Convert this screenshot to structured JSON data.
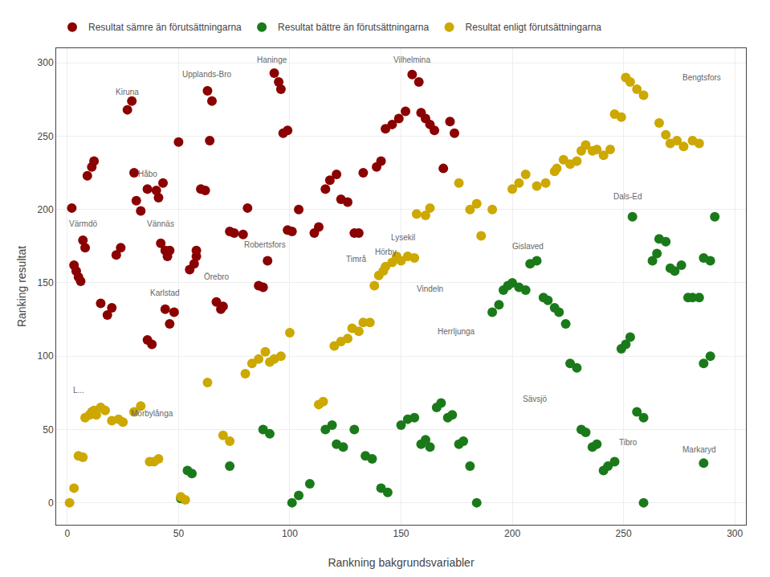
{
  "chart_data": {
    "type": "scatter",
    "xlabel": "Rankning bakgrundsvariabler",
    "ylabel": "Ranking resultat",
    "xlim": [
      -5,
      305
    ],
    "ylim": [
      -15,
      310
    ],
    "xticks": [
      0,
      50,
      100,
      150,
      200,
      250,
      300
    ],
    "yticks": [
      0,
      50,
      100,
      150,
      200,
      250,
      300
    ],
    "grid": true,
    "legend": "top left",
    "marker": "circle",
    "series": [
      {
        "name": "Resultat sämre än förutsättningarna",
        "color": "#8B0000",
        "x": [
          2,
          3,
          4,
          5,
          6,
          7,
          8,
          9,
          11,
          12,
          15,
          18,
          20,
          22,
          24,
          27,
          29,
          30,
          31,
          33,
          36,
          36,
          38,
          40,
          41,
          43,
          42,
          44,
          45,
          46,
          44,
          46,
          48,
          50,
          55,
          57,
          58,
          58,
          60,
          62,
          63,
          65,
          64,
          67,
          69,
          70,
          73,
          75,
          79,
          81,
          86,
          88,
          90,
          93,
          95,
          96,
          97,
          99,
          99,
          101,
          104,
          111,
          113,
          116,
          118,
          121,
          123,
          126,
          129,
          131,
          133,
          139,
          141,
          143,
          146,
          149,
          152,
          155,
          158,
          159,
          161,
          163,
          165,
          169,
          172,
          174
        ],
        "values": [
          201,
          162,
          158,
          154,
          151,
          179,
          174,
          223,
          229,
          233,
          136,
          128,
          133,
          169,
          174,
          268,
          274,
          225,
          206,
          199,
          214,
          111,
          108,
          213,
          208,
          218,
          177,
          172,
          168,
          172,
          132,
          122,
          130,
          246,
          159,
          163,
          168,
          172,
          214,
          213,
          281,
          274,
          247,
          137,
          132,
          134,
          185,
          184,
          183,
          201,
          148,
          147,
          165,
          293,
          287,
          282,
          252,
          254,
          186,
          185,
          200,
          184,
          188,
          214,
          220,
          224,
          207,
          205,
          184,
          184,
          225,
          229,
          233,
          255,
          258,
          262,
          267,
          292,
          287,
          266,
          262,
          258,
          254,
          228,
          260,
          252
        ]
      },
      {
        "name": "Resultat bättre än förutsättningarna",
        "color": "#1a7a1a",
        "x": [
          51,
          54,
          56,
          73,
          88,
          91,
          101,
          104,
          109,
          116,
          119,
          121,
          124,
          129,
          134,
          137,
          141,
          144,
          150,
          153,
          156,
          159,
          161,
          163,
          166,
          168,
          171,
          173,
          176,
          178,
          181,
          184,
          191,
          194,
          196,
          198,
          200,
          203,
          206,
          208,
          211,
          214,
          216,
          219,
          221,
          224,
          226,
          229,
          231,
          233,
          236,
          238,
          241,
          243,
          246,
          249,
          251,
          253,
          254,
          256,
          259,
          259,
          263,
          265,
          266,
          269,
          271,
          273,
          276,
          279,
          281,
          284,
          286,
          289,
          286,
          289,
          286,
          291
        ],
        "values": [
          3,
          22,
          20,
          25,
          50,
          47,
          0,
          5,
          13,
          50,
          53,
          40,
          38,
          50,
          32,
          30,
          10,
          7,
          53,
          57,
          58,
          40,
          43,
          38,
          65,
          68,
          58,
          60,
          40,
          42,
          25,
          0,
          130,
          135,
          145,
          148,
          150,
          147,
          145,
          163,
          165,
          140,
          138,
          133,
          130,
          122,
          95,
          92,
          50,
          48,
          38,
          40,
          22,
          25,
          28,
          105,
          108,
          113,
          195,
          62,
          58,
          0,
          165,
          170,
          180,
          178,
          160,
          158,
          162,
          140,
          140,
          140,
          167,
          165,
          95,
          100,
          27,
          195
        ]
      },
      {
        "name": "Resultat enligt förutsättningarna",
        "color": "#CCA800",
        "x": [
          1,
          3,
          5,
          7,
          8,
          10,
          11,
          12,
          13,
          15,
          17,
          20,
          23,
          25,
          30,
          33,
          37,
          39,
          41,
          51,
          53,
          63,
          70,
          73,
          80,
          83,
          86,
          89,
          91,
          93,
          96,
          100,
          113,
          115,
          120,
          123,
          126,
          128,
          131,
          133,
          136,
          138,
          140,
          142,
          143,
          146,
          148,
          150,
          153,
          156,
          157,
          161,
          163,
          176,
          181,
          184,
          186,
          191,
          200,
          203,
          206,
          211,
          215,
          219,
          220,
          223,
          226,
          229,
          231,
          233,
          236,
          238,
          241,
          244,
          246,
          249,
          251,
          253,
          256,
          259,
          266,
          269,
          271,
          274,
          277,
          281,
          284
        ],
        "values": [
          0,
          10,
          32,
          31,
          58,
          60,
          62,
          63,
          60,
          65,
          63,
          56,
          57,
          55,
          62,
          66,
          28,
          28,
          30,
          4,
          2,
          82,
          46,
          42,
          88,
          95,
          98,
          103,
          96,
          98,
          100,
          116,
          67,
          69,
          107,
          110,
          112,
          119,
          117,
          123,
          123,
          148,
          155,
          158,
          161,
          164,
          168,
          165,
          168,
          167,
          197,
          196,
          201,
          218,
          200,
          204,
          182,
          200,
          214,
          218,
          224,
          216,
          218,
          226,
          228,
          234,
          231,
          233,
          240,
          244,
          240,
          241,
          237,
          241,
          265,
          263,
          290,
          287,
          282,
          278,
          259,
          251,
          245,
          247,
          243,
          247,
          245
        ]
      }
    ],
    "annotations": [
      {
        "text": "Kiruna",
        "x": 27,
        "y": 271
      },
      {
        "text": "Upplands-Bro",
        "x": 63,
        "y": 283
      },
      {
        "text": "Haninge",
        "x": 92,
        "y": 293
      },
      {
        "text": "Vilhelmina",
        "x": 155,
        "y": 293
      },
      {
        "text": "Håbo",
        "x": 36,
        "y": 215
      },
      {
        "text": "Vännäs",
        "x": 42,
        "y": 181
      },
      {
        "text": "Värmdö",
        "x": 7,
        "y": 181
      },
      {
        "text": "Karlstad",
        "x": 44,
        "y": 134
      },
      {
        "text": "Örebro",
        "x": 67,
        "y": 145
      },
      {
        "text": "Robertsfors",
        "x": 89,
        "y": 167
      },
      {
        "text": "Timrå",
        "x": 130,
        "y": 157
      },
      {
        "text": "Hörby",
        "x": 143,
        "y": 162
      },
      {
        "text": "Lysekil",
        "x": 151,
        "y": 172
      },
      {
        "text": "Vindeln",
        "x": 163,
        "y": 137
      },
      {
        "text": "Herrljunga",
        "x": 175,
        "y": 108
      },
      {
        "text": "Gislaved",
        "x": 207,
        "y": 166
      },
      {
        "text": "Sävsjö",
        "x": 210,
        "y": 62
      },
      {
        "text": "Dals-Ed",
        "x": 252,
        "y": 200
      },
      {
        "text": "Bengtsfors",
        "x": 285,
        "y": 281
      },
      {
        "text": "Tibro",
        "x": 252,
        "y": 32
      },
      {
        "text": "Markaryd",
        "x": 284,
        "y": 27
      },
      {
        "text": "Mörbylånga",
        "x": 38,
        "y": 52
      },
      {
        "text": "L...",
        "x": 5,
        "y": 68
      }
    ]
  }
}
